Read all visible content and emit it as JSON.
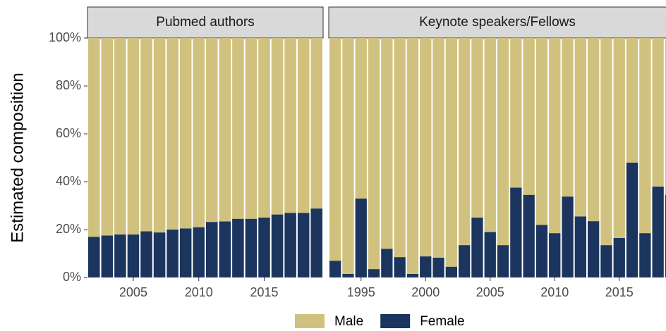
{
  "chart_data": [
    {
      "type": "bar",
      "stacked": true,
      "title": "Pubmed authors",
      "ylabel": "Estimated composition",
      "x": [
        2002,
        2003,
        2004,
        2005,
        2006,
        2007,
        2008,
        2009,
        2010,
        2011,
        2012,
        2013,
        2014,
        2015,
        2016,
        2017,
        2018,
        2019
      ],
      "series": [
        {
          "name": "Female",
          "color": "#1b355e",
          "values": [
            17,
            17.5,
            18,
            18,
            19.3,
            18.8,
            20,
            20.5,
            21,
            23.2,
            23.4,
            24.5,
            24.5,
            25,
            26.3,
            27,
            27,
            28.8
          ]
        },
        {
          "name": "Male",
          "color": "#d0c27e",
          "values": [
            83,
            82.5,
            82,
            82,
            80.7,
            81.2,
            80,
            79.5,
            79,
            76.8,
            76.6,
            75.5,
            75.5,
            75,
            73.7,
            73,
            73,
            71.2
          ]
        }
      ],
      "xlim": [
        2001.5,
        2019.5
      ],
      "xticks": [
        2005,
        2010,
        2015
      ],
      "ylim": [
        0,
        100
      ],
      "yticks": [
        {
          "value": 0,
          "label": "0%"
        },
        {
          "value": 20,
          "label": "20%"
        },
        {
          "value": 40,
          "label": "40%"
        },
        {
          "value": 60,
          "label": "60%"
        },
        {
          "value": 80,
          "label": "80%"
        },
        {
          "value": 100,
          "label": "100%"
        }
      ],
      "legend": "bottom"
    },
    {
      "type": "bar",
      "stacked": true,
      "title": "Keynote speakers/Fellows",
      "x": [
        1993,
        1994,
        1995,
        1996,
        1997,
        1998,
        1999,
        2000,
        2001,
        2002,
        2003,
        2004,
        2005,
        2006,
        2007,
        2008,
        2009,
        2010,
        2011,
        2012,
        2013,
        2014,
        2015,
        2016,
        2017,
        2018,
        2019
      ],
      "series": [
        {
          "name": "Female",
          "color": "#1b355e",
          "values": [
            7,
            1.5,
            33,
            3.5,
            12,
            8.5,
            1.5,
            8.8,
            8.3,
            4.5,
            13.5,
            25,
            19,
            13.5,
            37.5,
            34.5,
            22,
            18.5,
            33.8,
            25.5,
            23.5,
            13.5,
            16.5,
            48,
            18.5,
            38,
            34.5
          ]
        },
        {
          "name": "Male",
          "color": "#d0c27e",
          "values": [
            93,
            98.5,
            67,
            96.5,
            88,
            91.5,
            98.5,
            91.2,
            91.7,
            95.5,
            86.5,
            75,
            81,
            86.5,
            62.5,
            65.5,
            78,
            81.5,
            66.2,
            74.5,
            76.5,
            86.5,
            83.5,
            52,
            81.5,
            62,
            65.5
          ]
        }
      ],
      "xlim": [
        1992.5,
        2019.5
      ],
      "xticks": [
        1995,
        2000,
        2005,
        2010,
        2015
      ],
      "ylim": [
        0,
        100
      ]
    }
  ]
}
